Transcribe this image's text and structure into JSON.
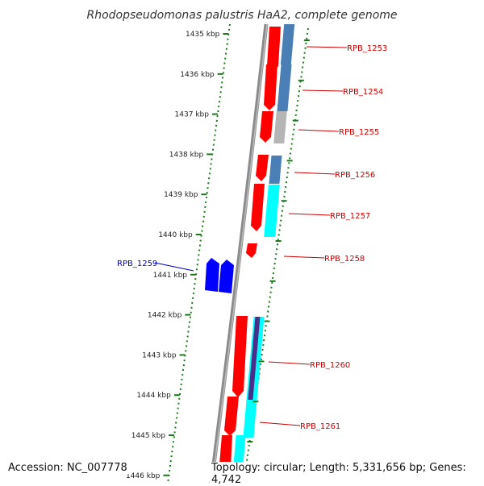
{
  "title": "Rhodopseudomonas palustris HaA2, complete genome",
  "accession_text": "Accession: NC_007778",
  "topology_text": "Topology: circular; Length: 5,331,656 bp; Genes: 4,742",
  "colors": {
    "backbone": "#777777",
    "tick": "#1a7a1a",
    "cds_forward_label": "#cc0000",
    "cds_reverse_label": "#0000cc",
    "orf": "#ff0000",
    "gene_forward": "#4a7fb5",
    "gene_unknown": "#b5b5b5",
    "gene_cyan": "#00ffff",
    "gene_purple": "#4b2e8a",
    "reverse_cds": "#0000ff"
  },
  "ticks": [
    {
      "label": "1435 kbp",
      "kbp": 1435
    },
    {
      "label": "1436 kbp",
      "kbp": 1436
    },
    {
      "label": "1437 kbp",
      "kbp": 1437
    },
    {
      "label": "1438 kbp",
      "kbp": 1438
    },
    {
      "label": "1439 kbp",
      "kbp": 1439
    },
    {
      "label": "1440 kbp",
      "kbp": 1440
    },
    {
      "label": "1441 kbp",
      "kbp": 1441
    },
    {
      "label": "1442 kbp",
      "kbp": 1442
    },
    {
      "label": "1443 kbp",
      "kbp": 1443
    },
    {
      "label": "1444 kbp",
      "kbp": 1444
    },
    {
      "label": "1445 kbp",
      "kbp": 1445
    },
    {
      "label": "1446 kbp",
      "kbp": 1446
    }
  ],
  "genes": [
    {
      "label": "RPB_1253",
      "strand": "forward"
    },
    {
      "label": "RPB_1254",
      "strand": "forward"
    },
    {
      "label": "RPB_1255",
      "strand": "forward"
    },
    {
      "label": "RPB_1256",
      "strand": "forward"
    },
    {
      "label": "RPB_1257",
      "strand": "forward"
    },
    {
      "label": "RPB_1258",
      "strand": "forward"
    },
    {
      "label": "RPB_1259",
      "strand": "reverse"
    },
    {
      "label": "RPB_1260",
      "strand": "forward"
    },
    {
      "label": "RPB_1261",
      "strand": "forward"
    }
  ]
}
